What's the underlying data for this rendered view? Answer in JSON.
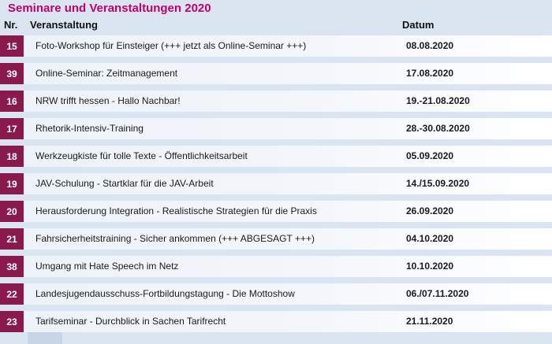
{
  "page": {
    "title": "Seminare und Veranstaltungen 2020"
  },
  "header": {
    "nr": "Nr.",
    "veranstaltung": "Veranstaltung",
    "datum": "Datum"
  },
  "colors": {
    "title": "#c2006b",
    "number_badge": "#8a1a4d",
    "row_background": "#edf2f9",
    "page_background": "#dbe5f1"
  },
  "events": [
    {
      "nr": "15",
      "title": "Foto-Workshop für Einsteiger (+++ jetzt als Online-Seminar +++)",
      "date": "08.08.2020"
    },
    {
      "nr": "39",
      "title": "Online-Seminar: Zeitmanagement",
      "date": "17.08.2020"
    },
    {
      "nr": "16",
      "title": "NRW trifft hessen - Hallo Nachbar!",
      "date": "19.-21.08.2020"
    },
    {
      "nr": "17",
      "title": "Rhetorik-Intensiv-Training",
      "date": "28.-30.08.2020"
    },
    {
      "nr": "18",
      "title": "Werkzeugkiste für tolle Texte - Öffentlichkeitsarbeit",
      "date": "05.09.2020"
    },
    {
      "nr": "19",
      "title": "JAV-Schulung - Startklar für die JAV-Arbeit",
      "date": "14./15.09.2020"
    },
    {
      "nr": "20",
      "title": "Herausforderung Integration - Realistische Strategien für die Praxis",
      "date": "26.09.2020"
    },
    {
      "nr": "21",
      "title": "Fahrsicherheitstraining - Sicher ankommen (+++ ABGESAGT +++)",
      "date": "04.10.2020"
    },
    {
      "nr": "38",
      "title": "Umgang mit Hate Speech im Netz",
      "date": "10.10.2020"
    },
    {
      "nr": "22",
      "title": "Landesjugendausschuss-Fortbildungstagung - Die Mottoshow",
      "date": "06./07.11.2020"
    },
    {
      "nr": "23",
      "title": "Tarifseminar - Durchblick in Sachen Tarifrecht",
      "date": "21.11.2020"
    }
  ]
}
